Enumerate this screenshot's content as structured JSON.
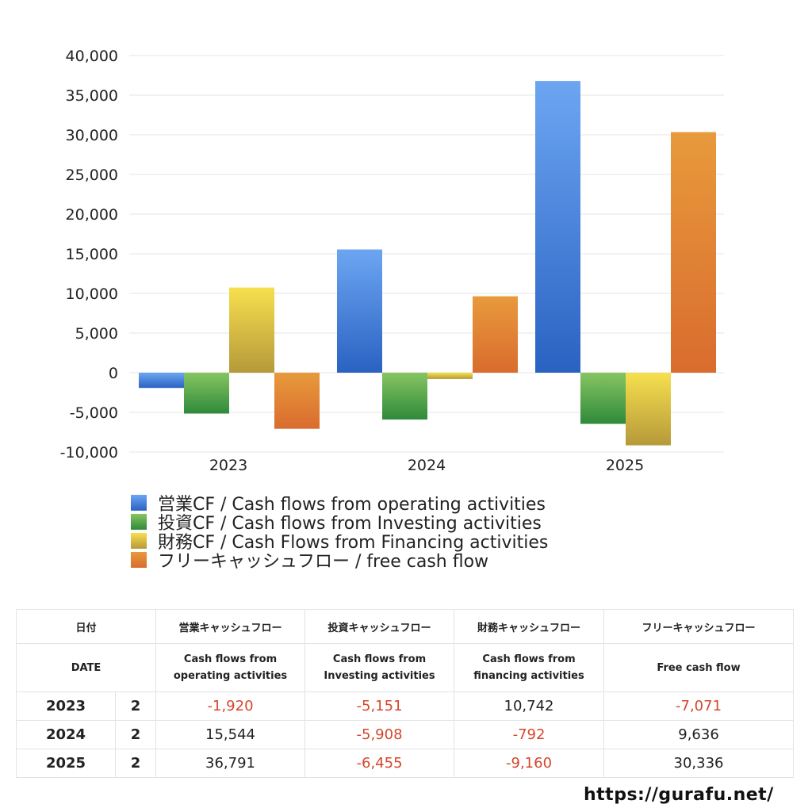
{
  "chart_data": {
    "type": "bar",
    "categories": [
      "2023",
      "2024",
      "2025"
    ],
    "series": [
      {
        "name": "営業CF / Cash flows from operating activities",
        "values": [
          -1920,
          15544,
          36791
        ],
        "color_top": "#6ca6f2",
        "color_bottom": "#2a62c2"
      },
      {
        "name": "投資CF / Cash flows from Investing activities",
        "values": [
          -5151,
          -5908,
          -6455
        ],
        "color_top": "#86c562",
        "color_bottom": "#2f8a3a"
      },
      {
        "name": "財務CF / Cash Flows from Financing activities",
        "values": [
          10742,
          -792,
          -9160
        ],
        "color_top": "#f6e04e",
        "color_bottom": "#b6993a"
      },
      {
        "name": "フリーキャッシュフロー / free cash flow",
        "values": [
          -7071,
          9636,
          30336
        ],
        "color_top": "#e89a3c",
        "color_bottom": "#d96c2e"
      }
    ],
    "ylim": [
      -10000,
      40000
    ],
    "yticks": [
      40000,
      35000,
      30000,
      25000,
      20000,
      15000,
      10000,
      5000,
      0,
      -5000,
      -10000
    ],
    "ytick_labels": [
      "40,000",
      "35,000",
      "30,000",
      "25,000",
      "20,000",
      "15,000",
      "10,000",
      "5,000",
      "0",
      "-5,000",
      "-10,000"
    ],
    "grid": true,
    "legend_position": "bottom"
  },
  "table": {
    "headers_ja": [
      "日付",
      "営業キャッシュフロー",
      "投資キャッシュフロー",
      "財務キャッシュフロー",
      "フリーキャッシュフロー"
    ],
    "headers_en": [
      "DATE",
      "Cash flows from\noperating activities",
      "Cash flows from\nInvesting activities",
      "Cash flows from\nfinancing activities",
      "Free cash flow"
    ],
    "rows": [
      {
        "year": "2023",
        "q": "2",
        "values": [
          "-1,920",
          "-5,151",
          "10,742",
          "-7,071"
        ],
        "negative": [
          true,
          true,
          false,
          true
        ]
      },
      {
        "year": "2024",
        "q": "2",
        "values": [
          "15,544",
          "-5,908",
          "-792",
          "9,636"
        ],
        "negative": [
          false,
          true,
          true,
          false
        ]
      },
      {
        "year": "2025",
        "q": "2",
        "values": [
          "36,791",
          "-6,455",
          "-9,160",
          "30,336"
        ],
        "negative": [
          false,
          true,
          true,
          false
        ]
      }
    ]
  },
  "source": "https://gurafu.net/"
}
